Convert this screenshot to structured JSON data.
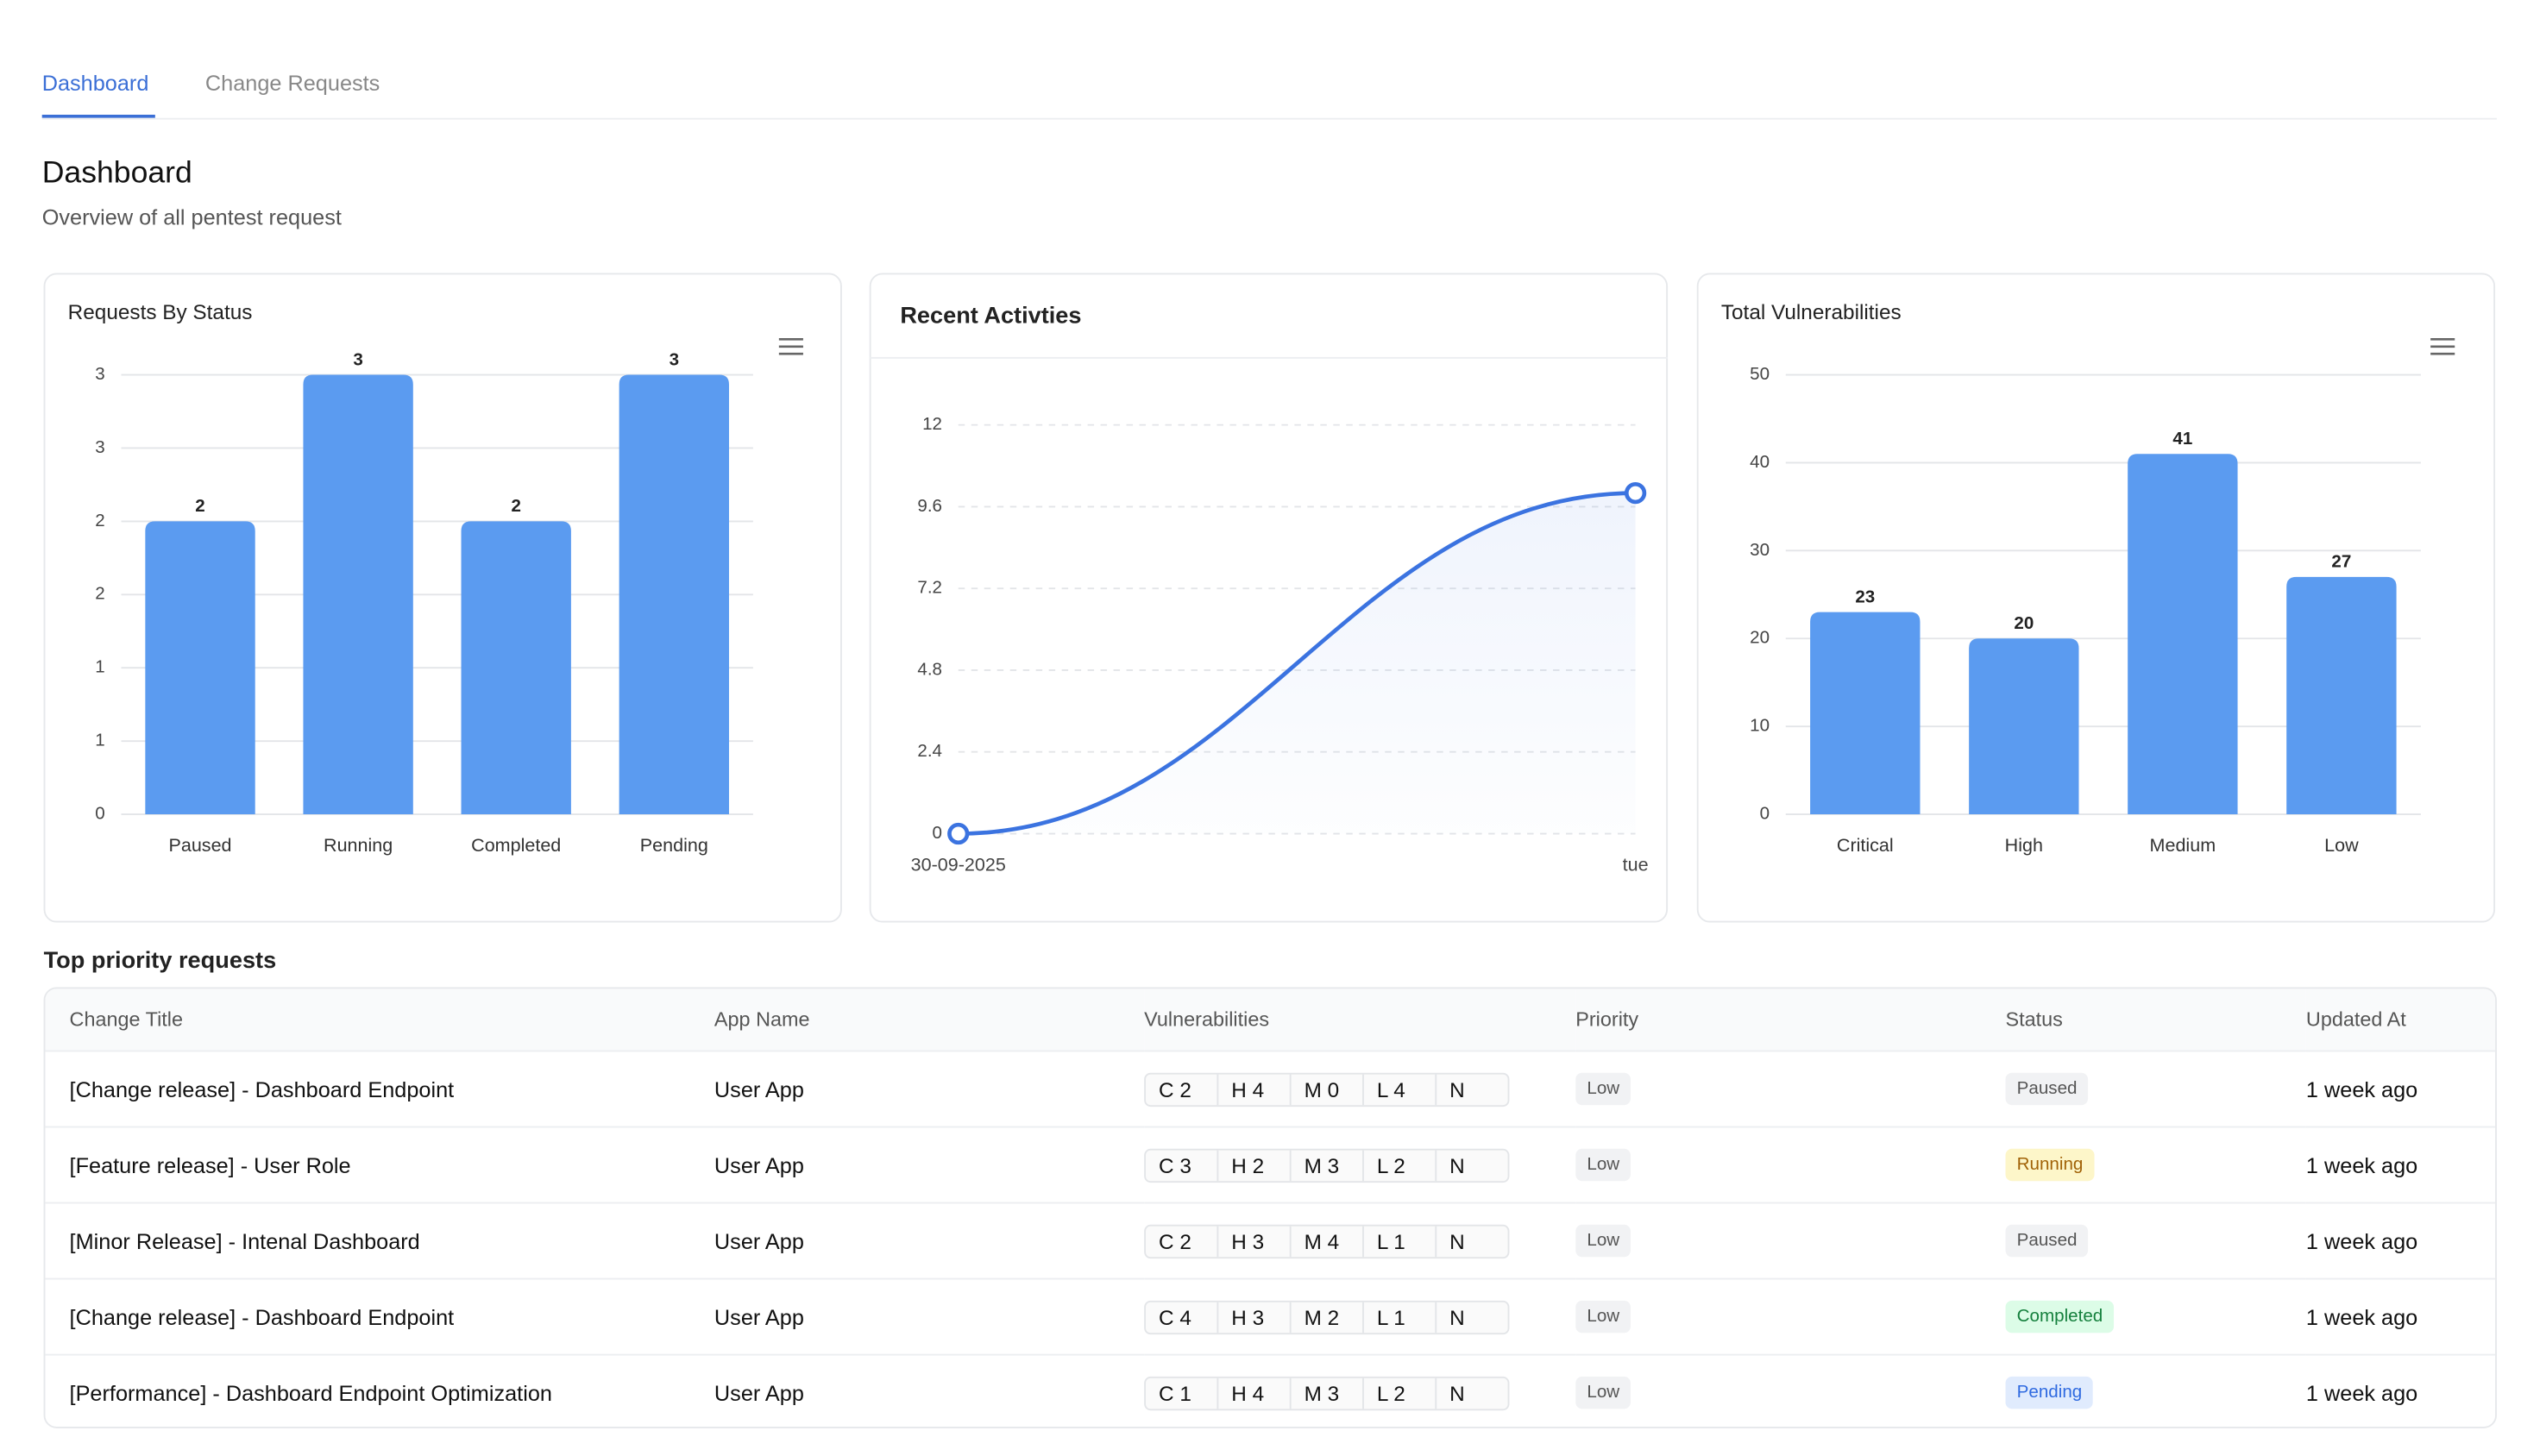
{
  "tabs": [
    "Dashboard",
    "Change Requests"
  ],
  "header": {
    "title": "Dashboard",
    "subtitle": "Overview of all pentest request"
  },
  "chart_data": [
    {
      "type": "bar",
      "title": "Requests By Status",
      "categories": [
        "Paused",
        "Running",
        "Completed",
        "Pending"
      ],
      "values": [
        2,
        3,
        2,
        3
      ],
      "color": "#5b9bf0",
      "ylim": [
        0,
        3
      ],
      "yticks": [
        0,
        {
          "value": 0.5,
          "label": "1"
        },
        1,
        {
          "value": 1.5,
          "label": "2"
        },
        2,
        {
          "value": 2.5,
          "label": "3"
        },
        3
      ],
      "grid": true
    },
    {
      "type": "line",
      "title": "Recent Activties",
      "categories": [
        "30-09-2025",
        "tue"
      ],
      "values": [
        0,
        10
      ],
      "color": "#3b73e0",
      "ylim": [
        0,
        12
      ],
      "yticks": [
        0,
        2.4,
        4.8,
        7.2,
        9.6,
        12
      ],
      "grid": "dashed"
    },
    {
      "type": "bar",
      "title": "Total Vulnerabilities",
      "categories": [
        "Critical",
        "High",
        "Medium",
        "Low"
      ],
      "values": [
        23,
        20,
        41,
        27
      ],
      "color": "#5b9bf0",
      "ylim": [
        0,
        50
      ],
      "yticks": [
        0,
        10,
        20,
        30,
        40,
        50
      ],
      "grid": true
    }
  ],
  "table": {
    "title": "Top priority requests",
    "columns": [
      "Change Title",
      "App Name",
      "Vulnerabilities",
      "Priority",
      "Status",
      "Updated At"
    ],
    "rows": [
      [
        "[Change release] - Dashboard Endpoint",
        "User App",
        [
          "C 2",
          "H 4",
          "M 0",
          "L 4",
          "N"
        ],
        "Low",
        "Paused",
        "1 week ago"
      ],
      [
        "[Feature release] - User Role",
        "User App",
        [
          "C 3",
          "H 2",
          "M 3",
          "L 2",
          "N"
        ],
        "Low",
        "Running",
        "1 week ago"
      ],
      [
        "[Minor Release] - Intenal Dashboard",
        "User App",
        [
          "C 2",
          "H 3",
          "M 4",
          "L 1",
          "N"
        ],
        "Low",
        "Paused",
        "1 week ago"
      ],
      [
        "[Change release] - Dashboard Endpoint",
        "User App",
        [
          "C 4",
          "H 3",
          "M 2",
          "L 1",
          "N"
        ],
        "Low",
        "Completed",
        "1 week ago"
      ],
      [
        "[Performance] - Dashboard Endpoint Optimization",
        "User App",
        [
          "C 1",
          "H 4",
          "M 3",
          "L 2",
          "N"
        ],
        "Low",
        "Pending",
        "1 week ago"
      ]
    ]
  }
}
